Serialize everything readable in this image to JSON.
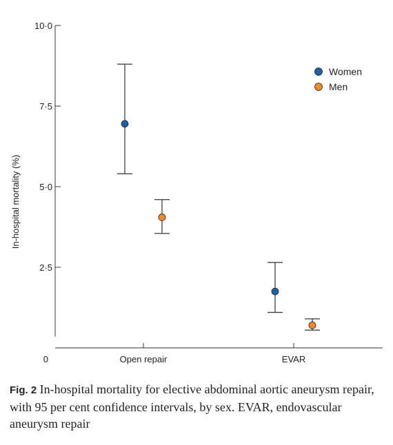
{
  "chart_data": {
    "type": "scatter",
    "categories": [
      "Open repair",
      "EVAR"
    ],
    "ylabel": "In-hospital mortality (%)",
    "ylim": [
      0,
      10
    ],
    "yticks": [
      {
        "value": 0,
        "label": "0"
      },
      {
        "value": 2.5,
        "label": "2·5"
      },
      {
        "value": 5,
        "label": "5·0"
      },
      {
        "value": 7.5,
        "label": "7·5"
      },
      {
        "value": 10,
        "label": "10·0"
      }
    ],
    "grid": false,
    "legend_position": "top-right",
    "series": [
      {
        "name": "Women",
        "color": "#1f5fa6",
        "points": [
          {
            "category": "Open repair",
            "value": 6.95,
            "ci_low": 5.4,
            "ci_high": 8.8
          },
          {
            "category": "EVAR",
            "value": 1.75,
            "ci_low": 1.1,
            "ci_high": 2.65
          }
        ]
      },
      {
        "name": "Men",
        "color": "#f08a2b",
        "points": [
          {
            "category": "Open repair",
            "value": 4.05,
            "ci_low": 3.55,
            "ci_high": 4.6
          },
          {
            "category": "EVAR",
            "value": 0.7,
            "ci_low": 0.55,
            "ci_high": 0.9
          }
        ]
      }
    ]
  },
  "caption": {
    "label": "Fig. 2",
    "text": "In-hospital mortality for elective abdominal aortic aneurysm repair, with 95 per cent confidence intervals, by sex. EVAR, endovascular aneurysm repair"
  }
}
